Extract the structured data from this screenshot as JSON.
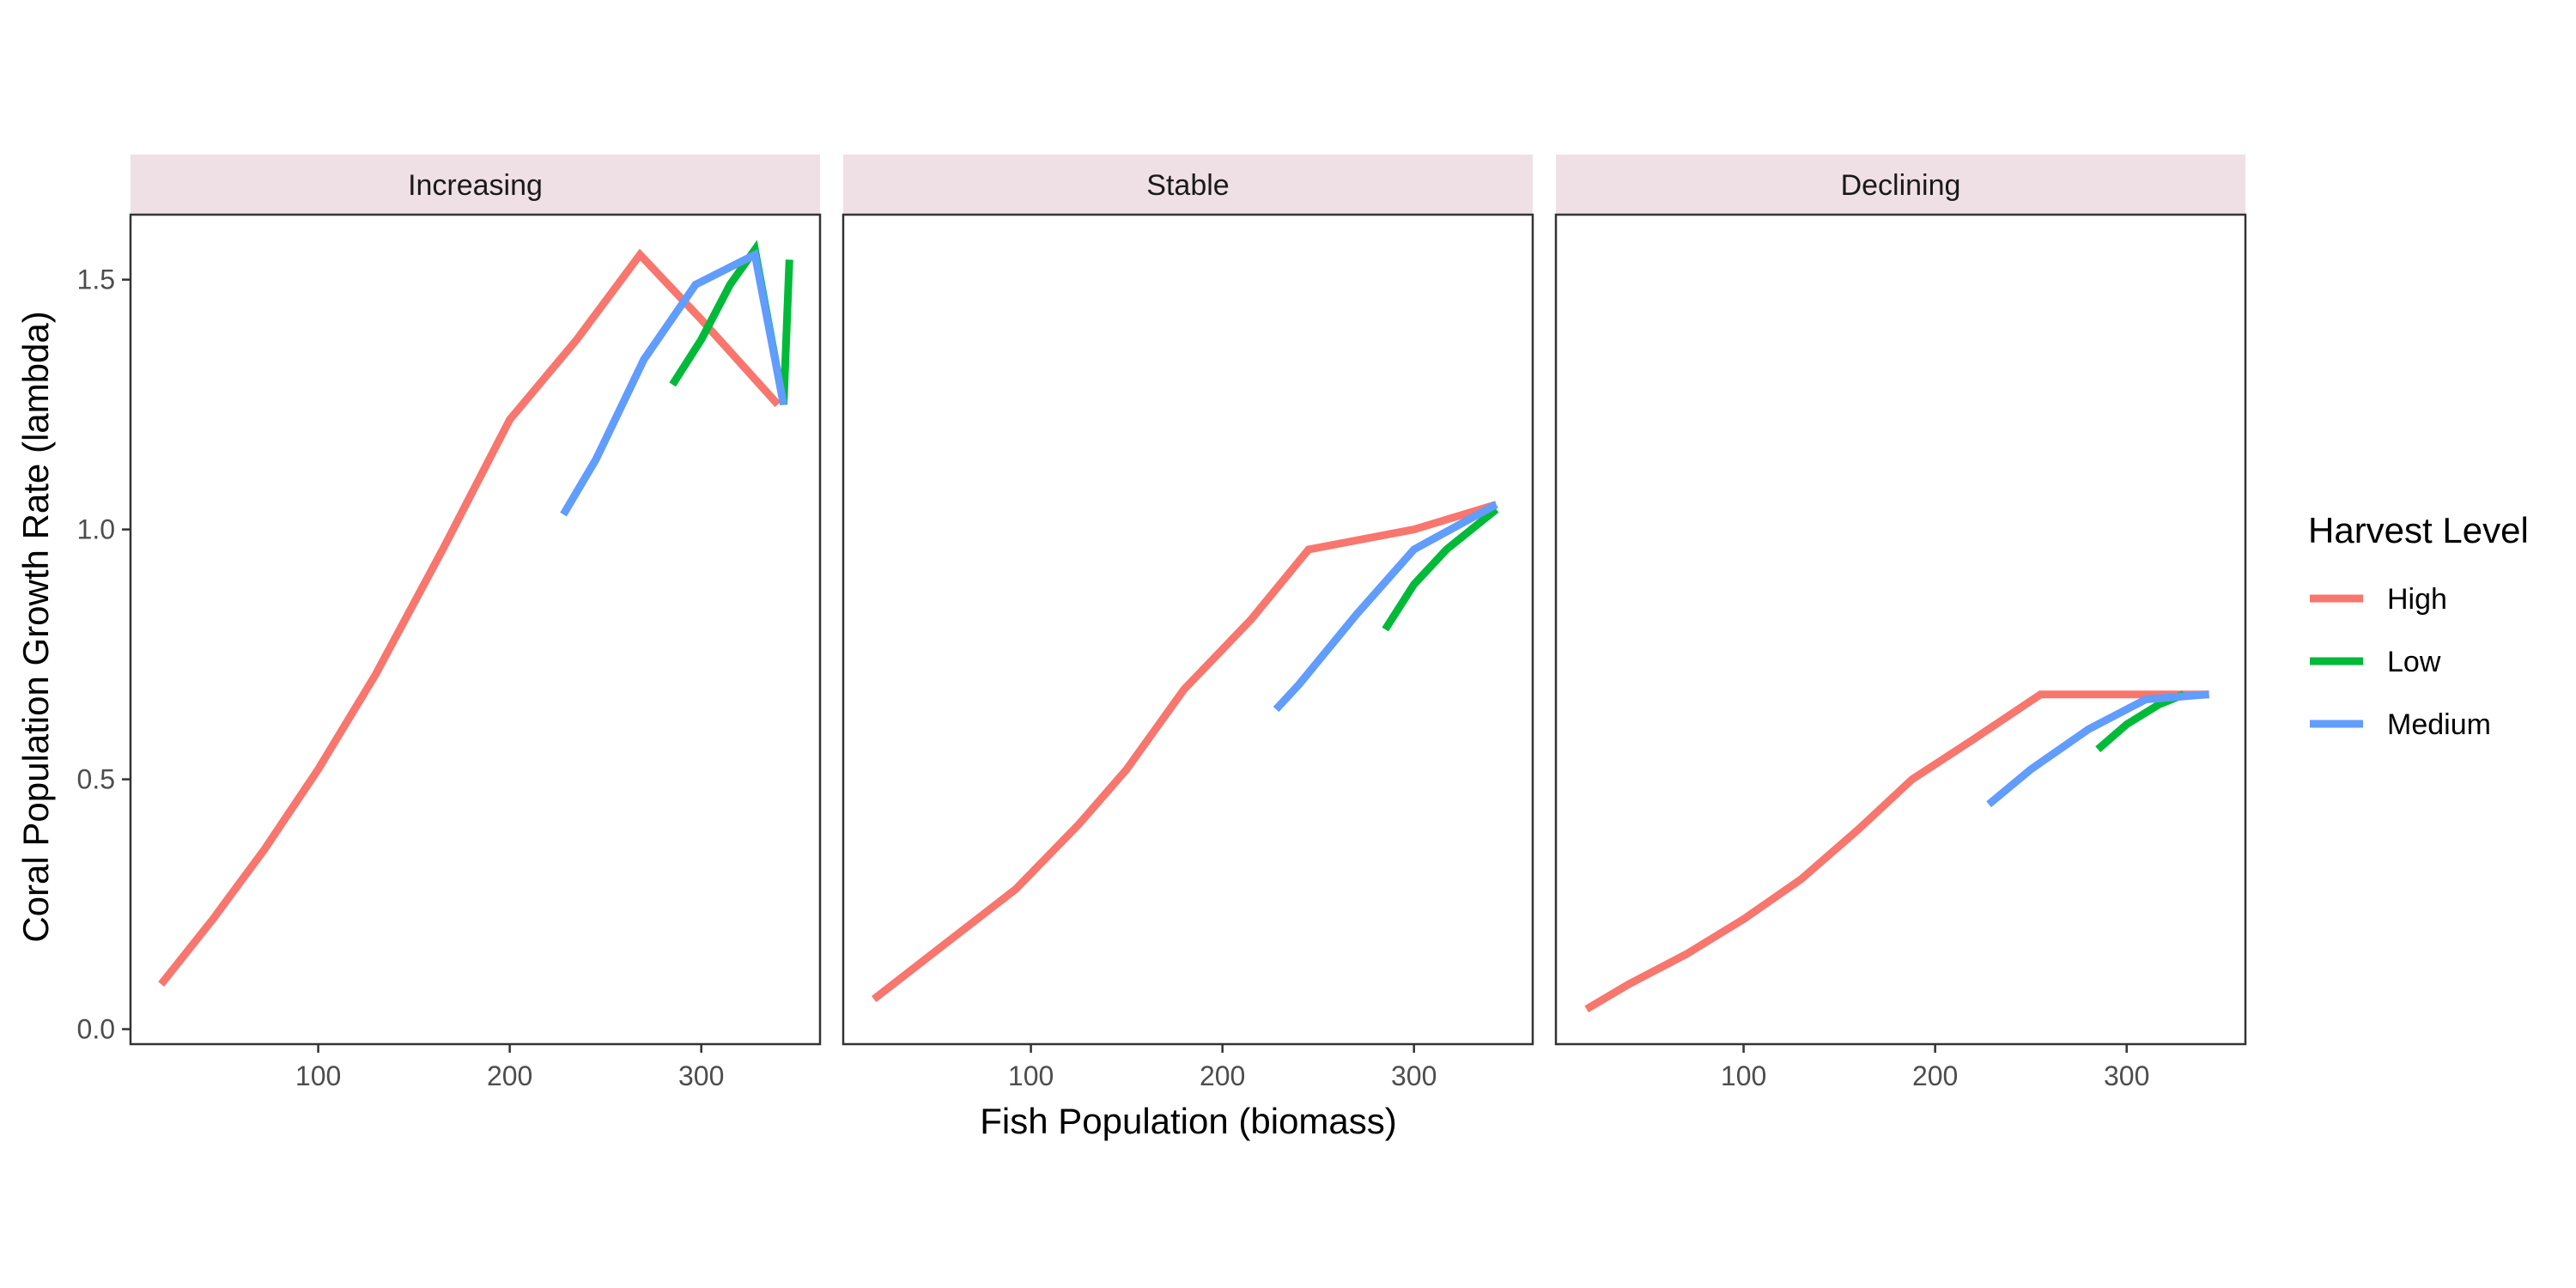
{
  "chart_data": {
    "type": "line",
    "xlabel": "Fish Population (biomass)",
    "ylabel": "Coral Population Growth Rate (lambda)",
    "xlim": [
      2,
      362
    ],
    "ylim": [
      -0.03,
      1.63
    ],
    "x_ticks": [
      100,
      200,
      300
    ],
    "y_ticks": [
      0.0,
      0.5,
      1.0,
      1.5
    ],
    "x_tick_labels": [
      "100",
      "200",
      "300"
    ],
    "y_tick_labels": [
      "0.0",
      "0.5",
      "1.0",
      "1.5"
    ],
    "grid": false,
    "legend": {
      "title": "Harvest Level",
      "placement": "right",
      "entries": [
        {
          "label": "High",
          "color": "#F8766D"
        },
        {
          "label": "Low",
          "color": "#00BA38"
        },
        {
          "label": "Medium",
          "color": "#619CFF"
        }
      ]
    },
    "panels": [
      {
        "title": "Increasing",
        "series": [
          {
            "name": "High",
            "color": "#F8766D",
            "points": [
              [
                18,
                0.09
              ],
              [
                45,
                0.22
              ],
              [
                72,
                0.36
              ],
              [
                100,
                0.52
              ],
              [
                130,
                0.71
              ],
              [
                165,
                0.96
              ],
              [
                200,
                1.22
              ],
              [
                235,
                1.38
              ],
              [
                268,
                1.55
              ],
              [
                300,
                1.42
              ],
              [
                340,
                1.25
              ]
            ]
          },
          {
            "name": "Low",
            "color": "#00BA38",
            "points": [
              [
                285,
                1.29
              ],
              [
                300,
                1.38
              ],
              [
                315,
                1.49
              ],
              [
                328,
                1.56
              ],
              [
                343,
                1.25
              ],
              [
                346,
                1.54
              ]
            ]
          },
          {
            "name": "Medium",
            "color": "#619CFF",
            "points": [
              [
                228,
                1.03
              ],
              [
                245,
                1.14
              ],
              [
                270,
                1.34
              ],
              [
                297,
                1.49
              ],
              [
                328,
                1.55
              ],
              [
                343,
                1.25
              ]
            ]
          }
        ]
      },
      {
        "title": "Stable",
        "series": [
          {
            "name": "High",
            "color": "#F8766D",
            "points": [
              [
                18,
                0.06
              ],
              [
                55,
                0.17
              ],
              [
                92,
                0.28
              ],
              [
                125,
                0.41
              ],
              [
                150,
                0.52
              ],
              [
                180,
                0.68
              ],
              [
                215,
                0.82
              ],
              [
                245,
                0.96
              ],
              [
                300,
                1.0
              ],
              [
                343,
                1.05
              ]
            ]
          },
          {
            "name": "Low",
            "color": "#00BA38",
            "points": [
              [
                285,
                0.8
              ],
              [
                300,
                0.89
              ],
              [
                317,
                0.96
              ],
              [
                343,
                1.04
              ]
            ]
          },
          {
            "name": "Medium",
            "color": "#619CFF",
            "points": [
              [
                228,
                0.64
              ],
              [
                240,
                0.69
              ],
              [
                270,
                0.83
              ],
              [
                300,
                0.96
              ],
              [
                343,
                1.05
              ]
            ]
          }
        ]
      },
      {
        "title": "Declining",
        "series": [
          {
            "name": "High",
            "color": "#F8766D",
            "points": [
              [
                18,
                0.04
              ],
              [
                40,
                0.09
              ],
              [
                70,
                0.15
              ],
              [
                100,
                0.22
              ],
              [
                130,
                0.3
              ],
              [
                160,
                0.4
              ],
              [
                188,
                0.5
              ],
              [
                220,
                0.58
              ],
              [
                255,
                0.67
              ],
              [
                310,
                0.67
              ],
              [
                343,
                0.67
              ]
            ]
          },
          {
            "name": "Low",
            "color": "#00BA38",
            "points": [
              [
                285,
                0.56
              ],
              [
                300,
                0.61
              ],
              [
                317,
                0.65
              ],
              [
                330,
                0.67
              ]
            ]
          },
          {
            "name": "Medium",
            "color": "#619CFF",
            "points": [
              [
                228,
                0.45
              ],
              [
                250,
                0.52
              ],
              [
                280,
                0.6
              ],
              [
                310,
                0.66
              ],
              [
                343,
                0.67
              ]
            ]
          }
        ]
      }
    ]
  }
}
